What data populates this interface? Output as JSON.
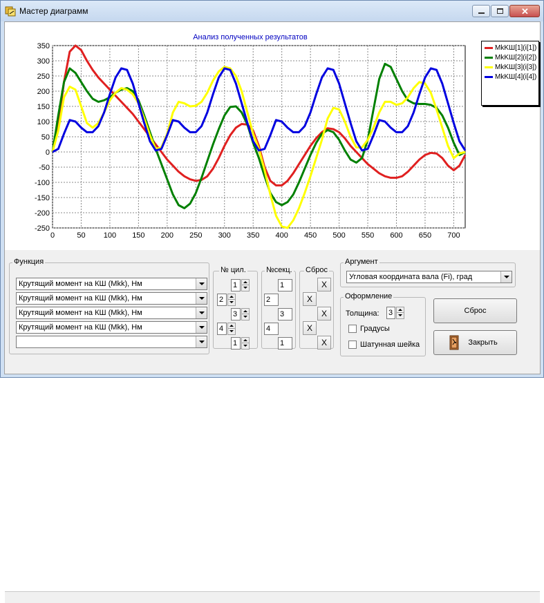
{
  "window": {
    "title": "Мастер диаграмм"
  },
  "chart_data": {
    "type": "line",
    "title": "Анализ полученных результатов",
    "xlabel": "",
    "ylabel": "",
    "xlim": [
      0,
      720
    ],
    "ylim": [
      -250,
      350
    ],
    "xticks": [
      0,
      50,
      100,
      150,
      200,
      250,
      300,
      350,
      400,
      450,
      500,
      550,
      600,
      650,
      700
    ],
    "yticks": [
      -250,
      -200,
      -150,
      -100,
      -50,
      0,
      50,
      100,
      150,
      200,
      250,
      300,
      350
    ],
    "grid": true,
    "legend_position": "right",
    "x": [
      0,
      10,
      20,
      30,
      40,
      50,
      60,
      70,
      80,
      90,
      100,
      110,
      120,
      130,
      140,
      150,
      160,
      170,
      180,
      190,
      200,
      210,
      220,
      230,
      240,
      250,
      260,
      270,
      280,
      290,
      300,
      310,
      320,
      330,
      340,
      350,
      360,
      370,
      380,
      390,
      400,
      410,
      420,
      430,
      440,
      450,
      460,
      470,
      480,
      490,
      500,
      510,
      520,
      530,
      540,
      550,
      560,
      570,
      580,
      590,
      600,
      610,
      620,
      630,
      640,
      650,
      660,
      670,
      680,
      690,
      700,
      710,
      720
    ],
    "series": [
      {
        "name": "MkKШ[1](i[1])",
        "color": "#e02020",
        "values": [
          0,
          90,
          230,
          330,
          350,
          335,
          300,
          270,
          245,
          225,
          205,
          185,
          165,
          145,
          125,
          100,
          75,
          50,
          25,
          0,
          -25,
          -45,
          -65,
          -80,
          -90,
          -95,
          -92,
          -80,
          -55,
          -20,
          20,
          55,
          80,
          92,
          90,
          70,
          20,
          -50,
          -95,
          -110,
          -110,
          -95,
          -70,
          -40,
          -10,
          20,
          45,
          65,
          78,
          75,
          65,
          45,
          20,
          0,
          -20,
          -40,
          -55,
          -70,
          -80,
          -85,
          -85,
          -80,
          -65,
          -45,
          -25,
          -10,
          -3,
          -5,
          -20,
          -45,
          -60,
          -45,
          -10
        ]
      },
      {
        "name": "MkKШ[2](i[2])",
        "color": "#008000",
        "values": [
          0,
          120,
          230,
          275,
          260,
          230,
          200,
          175,
          165,
          170,
          180,
          195,
          205,
          210,
          200,
          170,
          120,
          65,
          10,
          -40,
          -90,
          -140,
          -175,
          -185,
          -170,
          -135,
          -85,
          -30,
          25,
          75,
          120,
          148,
          150,
          130,
          90,
          30,
          -20,
          -80,
          -135,
          -165,
          -175,
          -165,
          -140,
          -100,
          -55,
          -10,
          30,
          60,
          72,
          65,
          40,
          5,
          -25,
          -35,
          -20,
          40,
          140,
          240,
          290,
          280,
          240,
          200,
          170,
          160,
          158,
          158,
          155,
          145,
          120,
          80,
          30,
          -10,
          0
        ]
      },
      {
        "name": "MkKШ[3](i[3])",
        "color": "#ffff00",
        "values": [
          0,
          70,
          180,
          215,
          205,
          150,
          95,
          80,
          95,
          130,
          170,
          195,
          210,
          205,
          190,
          160,
          110,
          55,
          10,
          15,
          60,
          130,
          165,
          160,
          150,
          152,
          165,
          195,
          235,
          265,
          280,
          275,
          250,
          200,
          130,
          60,
          10,
          -60,
          -140,
          -210,
          -245,
          -250,
          -225,
          -185,
          -135,
          -80,
          -20,
          40,
          110,
          145,
          140,
          100,
          50,
          15,
          15,
          40,
          80,
          130,
          165,
          165,
          155,
          160,
          180,
          210,
          230,
          225,
          195,
          140,
          80,
          20,
          -20,
          -5,
          0
        ]
      },
      {
        "name": "MkKШ[4](i[4])",
        "color": "#0000e0",
        "values": [
          0,
          10,
          60,
          105,
          100,
          80,
          65,
          65,
          85,
          130,
          190,
          245,
          275,
          270,
          225,
          160,
          95,
          35,
          5,
          10,
          55,
          105,
          100,
          80,
          65,
          65,
          85,
          130,
          190,
          245,
          275,
          270,
          225,
          160,
          95,
          35,
          5,
          10,
          55,
          105,
          100,
          80,
          65,
          65,
          85,
          130,
          190,
          245,
          275,
          270,
          225,
          160,
          95,
          35,
          5,
          10,
          55,
          105,
          100,
          80,
          65,
          65,
          85,
          130,
          190,
          245,
          275,
          270,
          225,
          160,
          95,
          35,
          5
        ]
      }
    ]
  },
  "func_group": {
    "label": "Функция",
    "combos": [
      "Крутящий момент на КШ (Mkk), Нм",
      "Крутящий момент на КШ (Mkk), Нм",
      "Крутящий момент на КШ (Mkk), Нм",
      "Крутящий момент на КШ (Mkk), Нм",
      ""
    ]
  },
  "cyl_group": {
    "label": "№ цил.",
    "values": [
      "1",
      "2",
      "3",
      "4",
      "1"
    ]
  },
  "sec_group": {
    "label": "№секц.",
    "values": [
      "1",
      "2",
      "3",
      "4",
      "1"
    ]
  },
  "reset_group": {
    "label": "Сброс",
    "x": "X"
  },
  "arg_group": {
    "label": "Аргумент",
    "value": "Угловая координата вала (Fi), град"
  },
  "design_group": {
    "label": "Оформление",
    "thickness_label": "Толщина:",
    "thickness_value": "3",
    "degrees_label": "Градусы",
    "crank_label": "Шатунная шейка"
  },
  "buttons": {
    "reset": "Сброс",
    "close": "Закрыть"
  },
  "colors": {
    "red": "#e02020",
    "green": "#008000",
    "yellow": "#ffff00",
    "blue": "#0000e0"
  }
}
